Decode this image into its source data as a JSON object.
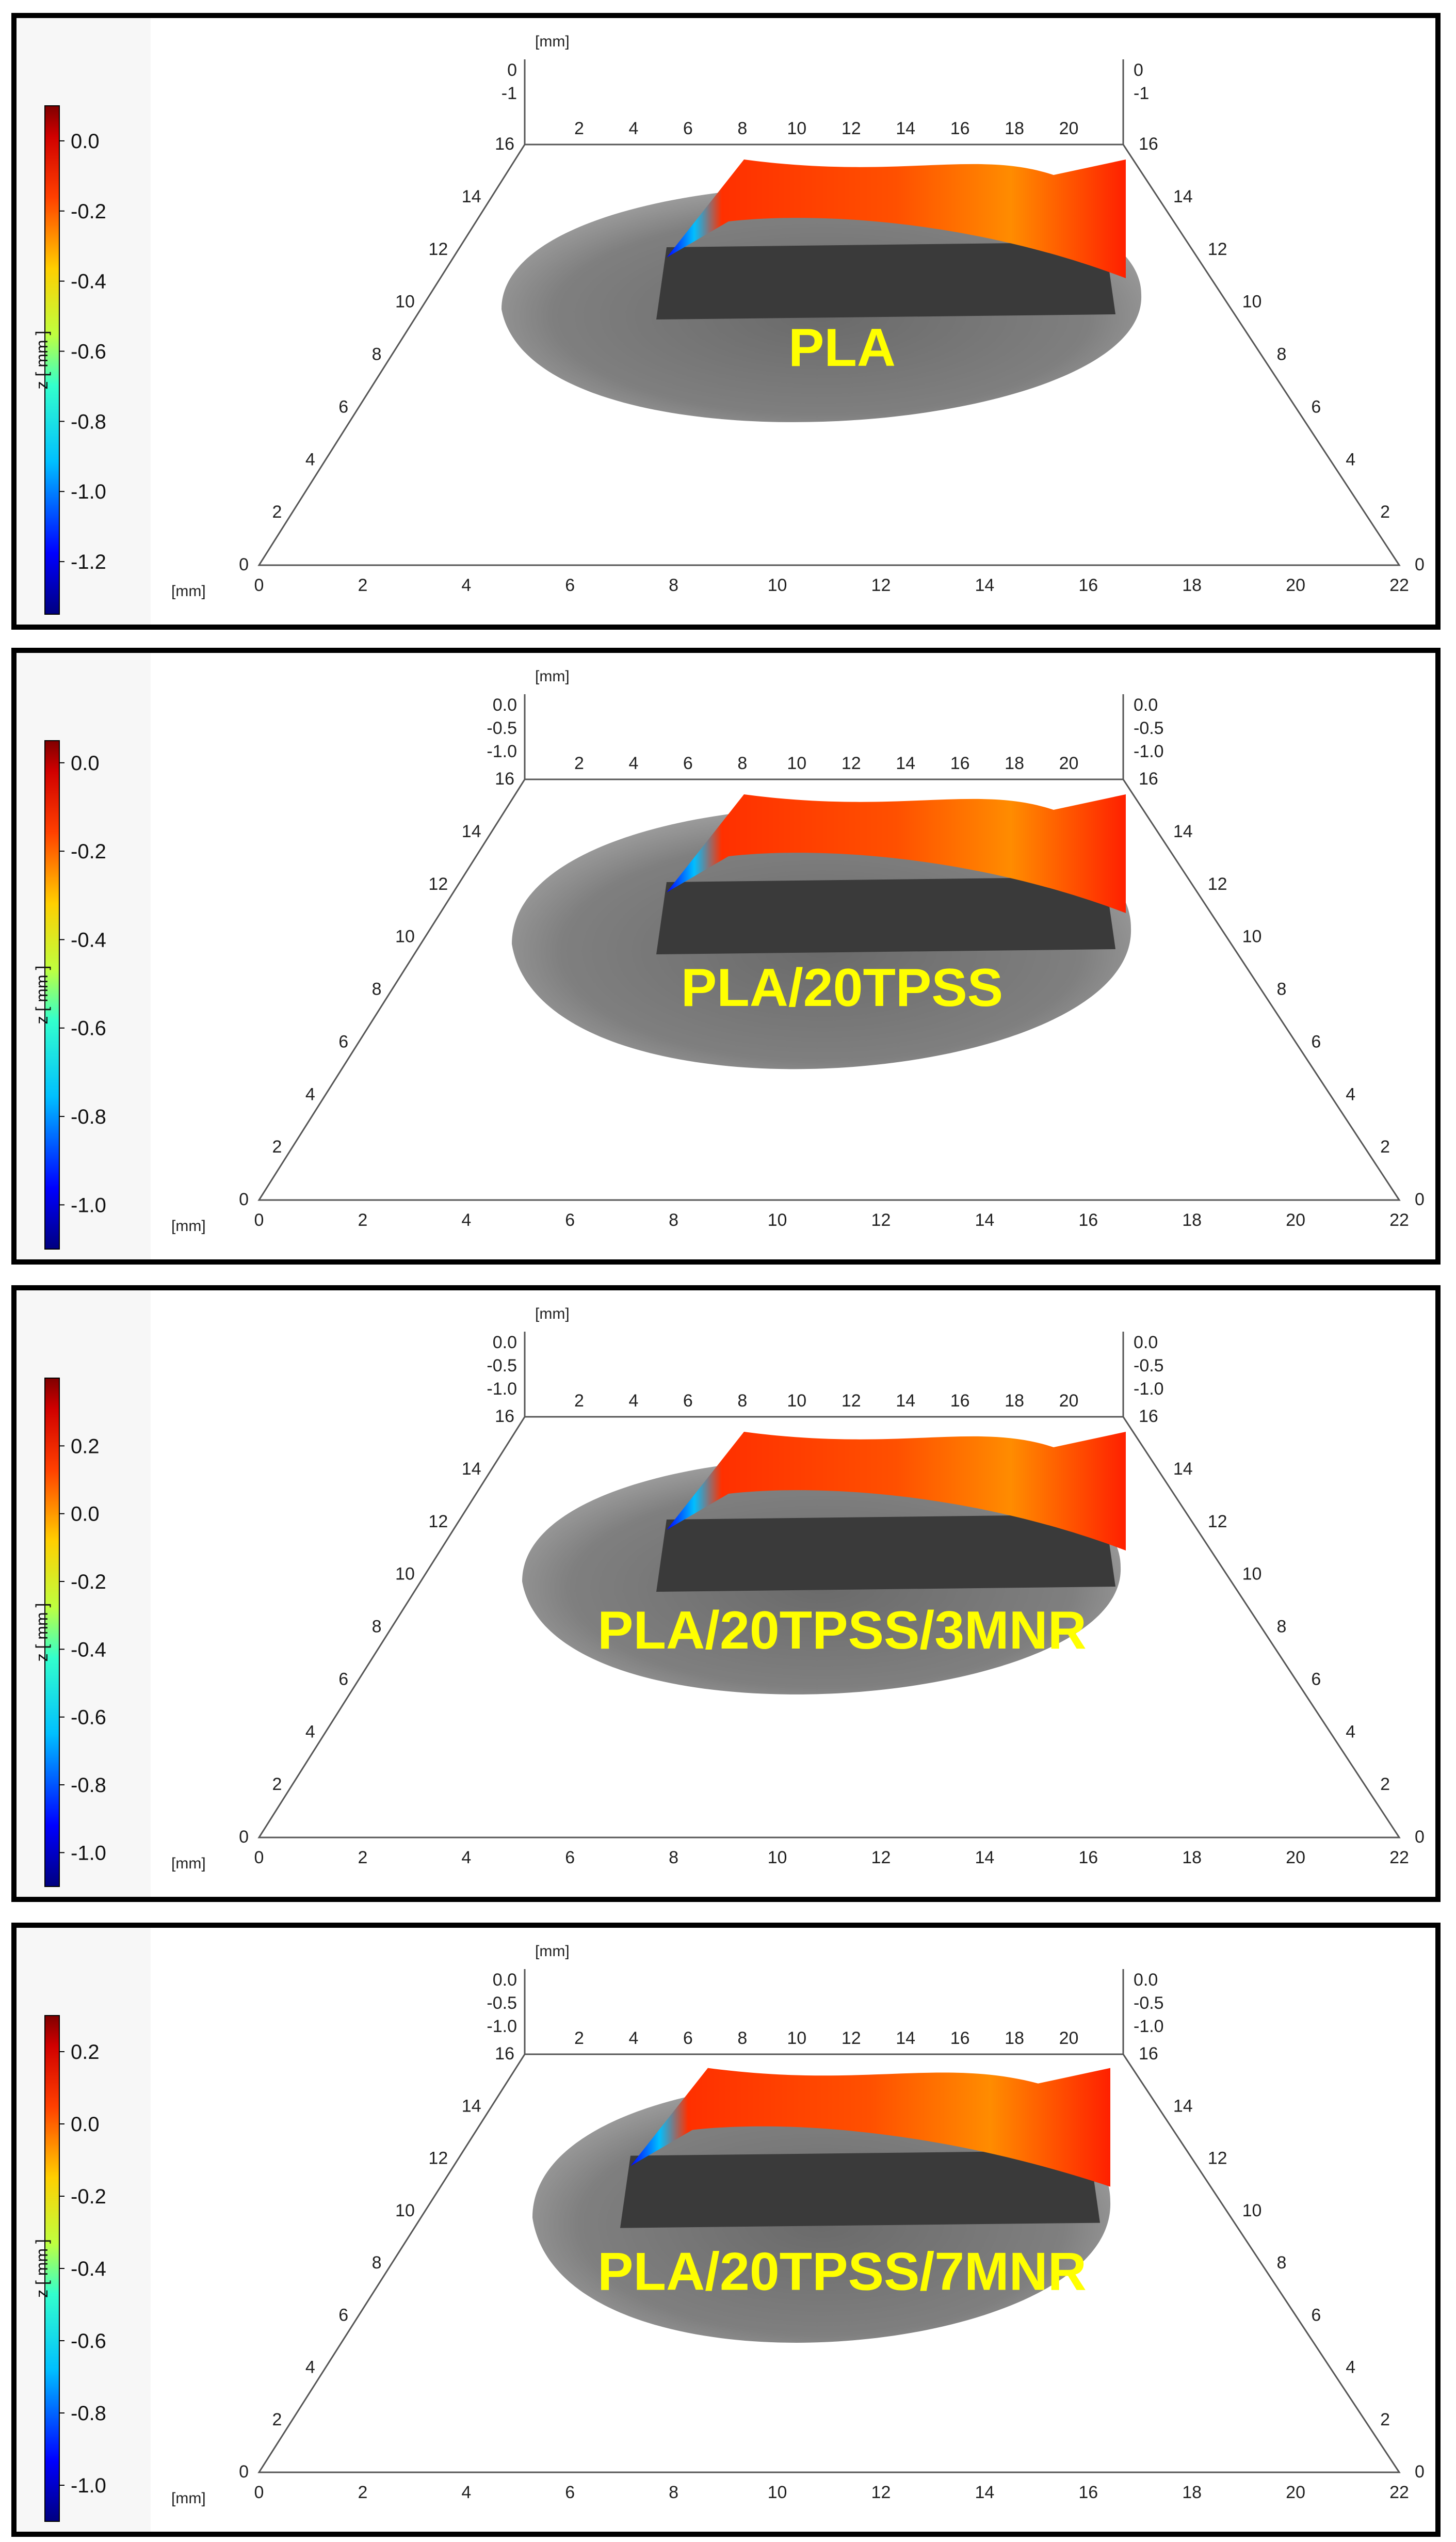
{
  "axis_unit": "[mm]",
  "colorbar_label": "z [ mm ]",
  "colors": {
    "label": "#ffff00",
    "frame": "#000000"
  },
  "x_ticks": [
    "0",
    "2",
    "4",
    "6",
    "8",
    "10",
    "12",
    "14",
    "16",
    "18",
    "20",
    "22"
  ],
  "y_ticks": [
    "0",
    "2",
    "4",
    "6",
    "8",
    "10",
    "12",
    "14",
    "16"
  ],
  "back_x_ticks": [
    "2",
    "4",
    "6",
    "8",
    "10",
    "12",
    "14",
    "16",
    "18",
    "20"
  ],
  "panels": [
    {
      "label": "PLA",
      "z_ticks_left": [
        "0",
        "-1"
      ],
      "z_ticks_right": [
        "0",
        "-1"
      ],
      "colorbar_ticks": [
        "0.0",
        "-0.2",
        "-0.4",
        "-0.6",
        "-0.8",
        "-1.0",
        "-1.2"
      ],
      "colorbar_range": [
        -1.35,
        0.1
      ]
    },
    {
      "label": "PLA/20TPSS",
      "z_ticks_left": [
        "0.0",
        "-0.5",
        "-1.0"
      ],
      "z_ticks_right": [
        "0.0",
        "-0.5",
        "-1.0"
      ],
      "colorbar_ticks": [
        "0.0",
        "-0.2",
        "-0.4",
        "-0.6",
        "-0.8",
        "-1.0"
      ],
      "colorbar_range": [
        -1.1,
        0.05
      ]
    },
    {
      "label": "PLA/20TPSS/3MNR",
      "z_ticks_left": [
        "0.0",
        "-0.5",
        "-1.0"
      ],
      "z_ticks_right": [
        "0.0",
        "-0.5",
        "-1.0"
      ],
      "colorbar_ticks": [
        "0.2",
        "0.0",
        "-0.2",
        "-0.4",
        "-0.6",
        "-0.8",
        "-1.0"
      ],
      "colorbar_range": [
        -1.1,
        0.4
      ]
    },
    {
      "label": "PLA/20TPSS/7MNR",
      "z_ticks_left": [
        "0.0",
        "-0.5",
        "-1.0"
      ],
      "z_ticks_right": [
        "0.0",
        "-0.5",
        "-1.0"
      ],
      "colorbar_ticks": [
        "0.2",
        "0.0",
        "-0.2",
        "-0.4",
        "-0.6",
        "-0.8",
        "-1.0"
      ],
      "colorbar_range": [
        -1.1,
        0.3
      ]
    }
  ]
}
